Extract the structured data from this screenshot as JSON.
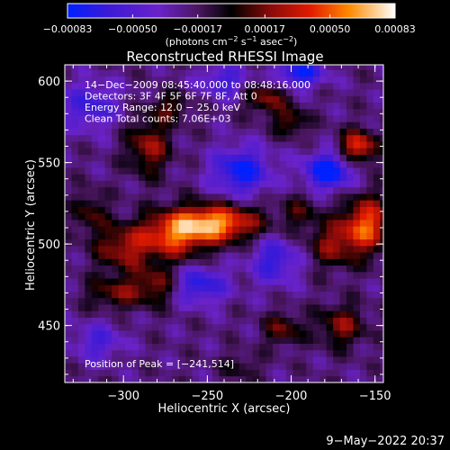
{
  "chart_data": {
    "type": "heatmap",
    "title": "Reconstructed RHESSI Image",
    "xlabel": "Heliocentric X (arcsec)",
    "ylabel": "Heliocentric Y (arcsec)",
    "xlim": [
      -335,
      -145
    ],
    "ylim": [
      415,
      610
    ],
    "x_ticks": [
      {
        "value": -300,
        "label": "−300"
      },
      {
        "value": -250,
        "label": "−250"
      },
      {
        "value": -200,
        "label": "−200"
      },
      {
        "value": -150,
        "label": "−150"
      }
    ],
    "y_ticks": [
      {
        "value": 450,
        "label": "450"
      },
      {
        "value": 500,
        "label": "500"
      },
      {
        "value": 550,
        "label": "550"
      },
      {
        "value": 600,
        "label": "600"
      }
    ],
    "colorbar": {
      "range": [
        -0.00083,
        0.00083
      ],
      "ticks": [
        {
          "value": -0.00083,
          "label": "−0.00083"
        },
        {
          "value": -0.0005,
          "label": "−0.00050"
        },
        {
          "value": -0.00017,
          "label": "−0.00017"
        },
        {
          "value": 0.00017,
          "label": "0.00017"
        },
        {
          "value": 0.0005,
          "label": "0.00050"
        },
        {
          "value": 0.00083,
          "label": "0.00083"
        }
      ],
      "unit_main": "(photons cm",
      "unit_exp1": "−2",
      "unit_mid": " s",
      "unit_exp2": "−1",
      "unit_mid2": " asec",
      "unit_exp3": "−2",
      "unit_end": ")"
    },
    "annotations": [
      "14−Dec−2009 08:45:40.000 to 08:48:16.000",
      "Detectors: 3F 4F 5F 6F 7F 8F, Att 0",
      "Energy Range: 12.0 − 25.0 keV",
      "Clean     Total counts: 7.06E+03"
    ],
    "peak_label": "Position of Peak = [−241,514]",
    "peak": {
      "x": -241,
      "y": 514
    },
    "sources": [
      {
        "x": -245,
        "y": 513,
        "amp": 0.00083,
        "sx": 18,
        "sy": 8
      },
      {
        "x": -270,
        "y": 505,
        "amp": 0.0006,
        "sx": 14,
        "sy": 10
      },
      {
        "x": -300,
        "y": 498,
        "amp": 0.00045,
        "sx": 12,
        "sy": 10
      },
      {
        "x": -280,
        "y": 475,
        "amp": 0.0004,
        "sx": 10,
        "sy": 8
      },
      {
        "x": -305,
        "y": 470,
        "amp": 0.00035,
        "sx": 12,
        "sy": 7
      },
      {
        "x": -285,
        "y": 560,
        "amp": 0.00045,
        "sx": 9,
        "sy": 12
      },
      {
        "x": -272,
        "y": 584,
        "amp": 0.0003,
        "sx": 8,
        "sy": 6
      },
      {
        "x": -155,
        "y": 512,
        "amp": 0.0007,
        "sx": 10,
        "sy": 12
      },
      {
        "x": -175,
        "y": 500,
        "amp": 0.0004,
        "sx": 10,
        "sy": 10
      },
      {
        "x": -160,
        "y": 560,
        "amp": 0.00065,
        "sx": 8,
        "sy": 7
      },
      {
        "x": -170,
        "y": 450,
        "amp": 0.0004,
        "sx": 10,
        "sy": 9
      },
      {
        "x": -205,
        "y": 448,
        "amp": 0.00035,
        "sx": 8,
        "sy": 7
      },
      {
        "x": -215,
        "y": 590,
        "amp": 0.0004,
        "sx": 9,
        "sy": 7
      },
      {
        "x": -200,
        "y": 575,
        "amp": 0.00035,
        "sx": 7,
        "sy": 6
      },
      {
        "x": -320,
        "y": 520,
        "amp": 0.0003,
        "sx": 7,
        "sy": 9
      },
      {
        "x": -195,
        "y": 520,
        "amp": 0.00025,
        "sx": 8,
        "sy": 8
      },
      {
        "x": -230,
        "y": 425,
        "amp": 0.0002,
        "sx": 8,
        "sy": 6
      },
      {
        "x": -230,
        "y": 545,
        "amp": -0.0006,
        "sx": 12,
        "sy": 10
      },
      {
        "x": -178,
        "y": 545,
        "amp": -0.0007,
        "sx": 10,
        "sy": 8
      },
      {
        "x": -195,
        "y": 605,
        "amp": -0.0006,
        "sx": 10,
        "sy": 6
      },
      {
        "x": -255,
        "y": 475,
        "amp": -0.0005,
        "sx": 12,
        "sy": 8
      },
      {
        "x": -320,
        "y": 585,
        "amp": -0.0004,
        "sx": 12,
        "sy": 10
      },
      {
        "x": -240,
        "y": 600,
        "amp": -0.0004,
        "sx": 10,
        "sy": 7
      },
      {
        "x": -210,
        "y": 490,
        "amp": -0.00045,
        "sx": 10,
        "sy": 10
      },
      {
        "x": -315,
        "y": 440,
        "amp": -0.00035,
        "sx": 10,
        "sy": 8
      }
    ]
  },
  "footer_timestamp": "9−May−2022 20:37"
}
